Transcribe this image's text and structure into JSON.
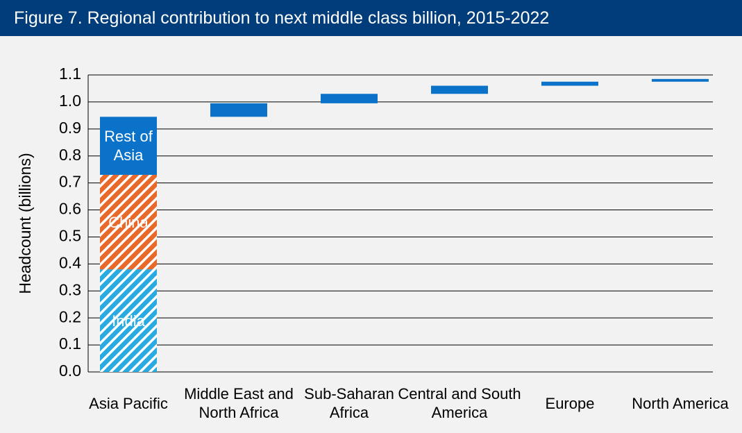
{
  "chart_data": {
    "type": "waterfall",
    "title": "Figure 7. Regional contribution to next middle class billion, 2015-2022",
    "y_label": "Headcount (billions)",
    "categories": [
      "Asia Pacific",
      "Middle East and North Africa",
      "Sub-Saharan Africa",
      "Central and South America",
      "Europe",
      "North America"
    ],
    "series": [
      {
        "name": "India",
        "color": "#29abe2",
        "hatch": true,
        "values": [
          0.38,
          null,
          null,
          null,
          null,
          null
        ]
      },
      {
        "name": "China",
        "color": "#e8692a",
        "hatch": true,
        "values": [
          0.35,
          null,
          null,
          null,
          null,
          null
        ]
      },
      {
        "name": "Rest of Asia",
        "color": "#0a72c9",
        "hatch": false,
        "values": [
          0.215,
          null,
          null,
          null,
          null,
          null
        ]
      },
      {
        "color": "#0a72c9",
        "hatch": false,
        "values": [
          null,
          0.05,
          0.035,
          0.03,
          0.015,
          0.01
        ]
      }
    ],
    "ylim": [
      0,
      1.1
    ],
    "yticks": [
      {
        "value": 0,
        "label": "0.0"
      },
      0.1,
      0.2,
      0.3,
      0.4,
      0.5,
      0.6,
      0.7,
      0.8,
      0.9,
      {
        "value": 1,
        "label": "1.0"
      },
      1.1
    ],
    "grid": true
  }
}
